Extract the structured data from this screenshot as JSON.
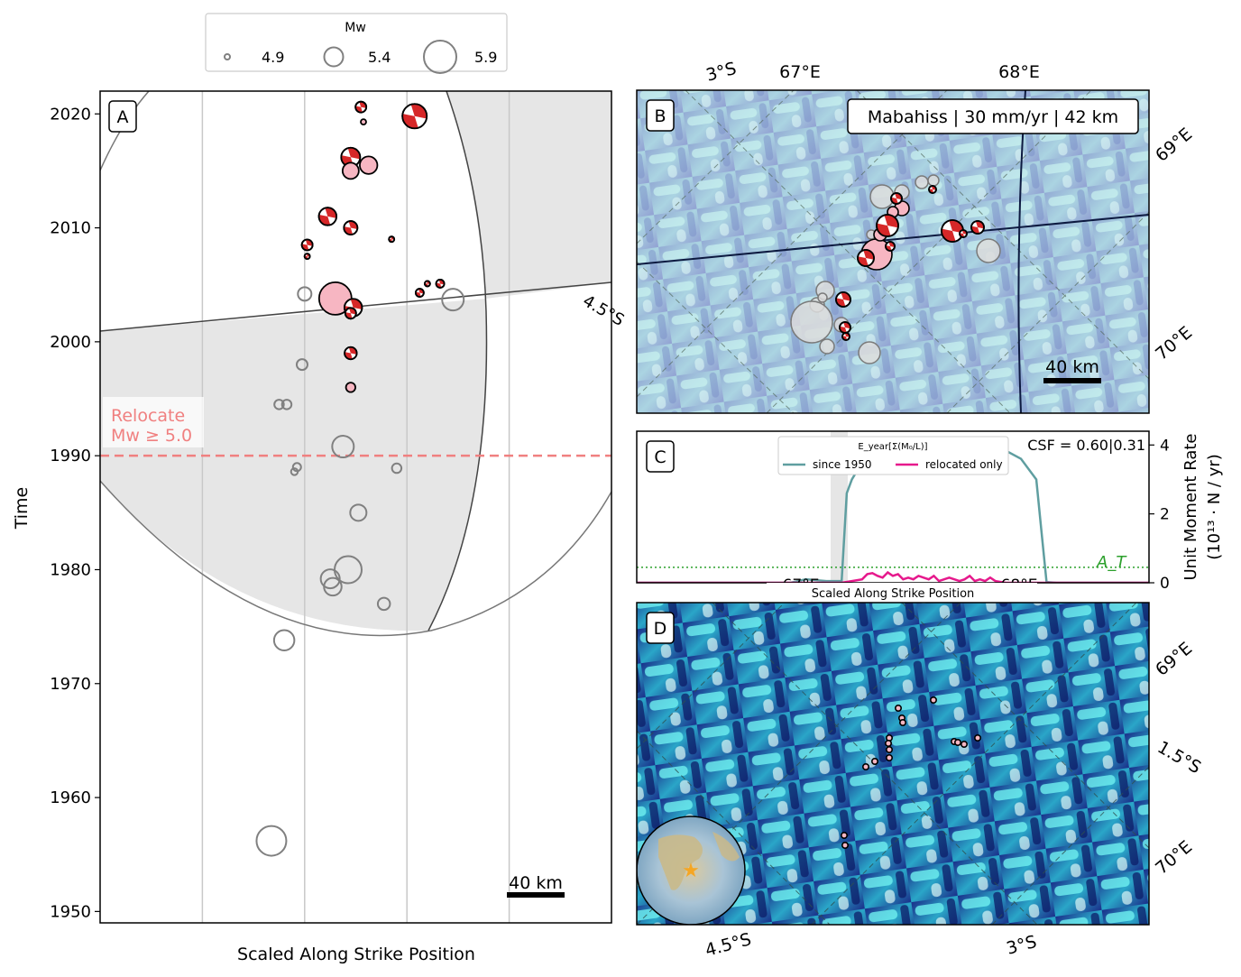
{
  "legend_top": {
    "title": "Mw",
    "items": [
      {
        "label": "4.9",
        "mw": 4.9
      },
      {
        "label": "5.4",
        "mw": 5.4
      },
      {
        "label": "5.9",
        "mw": 5.9
      }
    ]
  },
  "panel_a": {
    "letter": "A",
    "ylabel": "Time",
    "xlabel": "Scaled Along Strike Position",
    "yticks": [
      "1950",
      "1960",
      "1970",
      "1980",
      "1990",
      "2000",
      "2010",
      "2020"
    ],
    "lat_label": "4.5°S",
    "relocate_label_1": "Relocate",
    "relocate_label_2": "Mw ≥ 5.0",
    "relocate_year": 1990,
    "scalebar": "40 km"
  },
  "panel_b": {
    "letter": "B",
    "title_box": "Mabahiss | 30 mm/yr | 42 km",
    "top_labels": [
      "3°S",
      "67°E",
      "68°E"
    ],
    "right_labels": [
      "69°E",
      "70°E"
    ],
    "scalebar": "40 km"
  },
  "panel_c": {
    "letter": "C",
    "csf": "CSF = 0.60|0.31",
    "legend_title": "E_year[Σ(M₀/L)]",
    "series_names": [
      "since 1950",
      "relocated only"
    ],
    "ylabel_1": "Unit Moment Rate",
    "ylabel_2": "(10¹³ · N / yr)",
    "yticks": [
      "0",
      "2",
      "4"
    ],
    "threshold_label": "A_T",
    "xlabel": "Scaled Along Strike Position",
    "partial_ticks": [
      "67°E",
      "68°E"
    ]
  },
  "panel_d": {
    "letter": "D",
    "right_labels": [
      "69°E",
      "1.5°S",
      "70°E"
    ],
    "bottom_labels": [
      "4.5°S",
      "3°S"
    ]
  },
  "colors": {
    "relocated_fill": "#f7b6c2",
    "unrelocated_edge": "#808080",
    "focal_red": "#d62728",
    "relocate_line": "#f08080",
    "since1950": "#5f9ea0",
    "relocated_only": "#e6198c",
    "threshold": "#2ca02c",
    "shade": "#e6e6e6"
  },
  "chart_data": [
    {
      "type": "scatter",
      "panel": "A",
      "xlabel": "Scaled Along Strike Position",
      "ylabel": "Time",
      "ylim": [
        1949,
        2022
      ],
      "xlim": [
        0,
        100
      ],
      "grid": "vertical lines",
      "legend": "top-center (Mw sizes 4.9, 5.4, 5.9)",
      "relocated_events": [
        {
          "x": 51,
          "y": 2020.6,
          "mw": 5.1,
          "mech": true
        },
        {
          "x": 51.5,
          "y": 2019.3,
          "mw": 4.9,
          "mech": false
        },
        {
          "x": 61.5,
          "y": 2019.8,
          "mw": 5.6,
          "mech": true
        },
        {
          "x": 49,
          "y": 2016.2,
          "mw": 5.4,
          "mech": true
        },
        {
          "x": 52.5,
          "y": 2015.5,
          "mw": 5.35,
          "mech": false
        },
        {
          "x": 49,
          "y": 2015.0,
          "mw": 5.3,
          "mech": false
        },
        {
          "x": 44.5,
          "y": 2011.0,
          "mw": 5.35,
          "mech": true
        },
        {
          "x": 49,
          "y": 2010.0,
          "mw": 5.2,
          "mech": true
        },
        {
          "x": 57,
          "y": 2009.0,
          "mw": 4.85,
          "mech": true
        },
        {
          "x": 40.5,
          "y": 2008.5,
          "mw": 5.1,
          "mech": true
        },
        {
          "x": 40.5,
          "y": 2007.5,
          "mw": 4.9,
          "mech": true
        },
        {
          "x": 46,
          "y": 2003.8,
          "mw": 5.9,
          "mech": false
        },
        {
          "x": 49.5,
          "y": 2003.0,
          "mw": 5.35,
          "mech": true
        },
        {
          "x": 49,
          "y": 2002.5,
          "mw": 5.1,
          "mech": true
        },
        {
          "x": 62.5,
          "y": 2004.3,
          "mw": 5.0,
          "mech": true
        },
        {
          "x": 64,
          "y": 2005.1,
          "mw": 4.8,
          "mech": true
        },
        {
          "x": 66.5,
          "y": 2005.1,
          "mw": 5.0,
          "mech": true
        },
        {
          "x": 49,
          "y": 1999.0,
          "mw": 5.15,
          "mech": true
        },
        {
          "x": 49,
          "y": 1996.0,
          "mw": 5.05,
          "mech": false
        }
      ],
      "unrelocated_events": [
        {
          "x": 40,
          "y": 2004.2,
          "mw": 5.2
        },
        {
          "x": 69,
          "y": 2003.7,
          "mw": 5.5
        },
        {
          "x": 39.5,
          "y": 1998.0,
          "mw": 5.1
        },
        {
          "x": 35,
          "y": 1994.5,
          "mw": 5.05
        },
        {
          "x": 36.5,
          "y": 1994.5,
          "mw": 5.05
        },
        {
          "x": 47.5,
          "y": 1990.8,
          "mw": 5.5
        },
        {
          "x": 38.5,
          "y": 1989.0,
          "mw": 5.0
        },
        {
          "x": 38,
          "y": 1988.6,
          "mw": 4.95
        },
        {
          "x": 58,
          "y": 1988.9,
          "mw": 5.05
        },
        {
          "x": 50.5,
          "y": 1985.0,
          "mw": 5.3
        },
        {
          "x": 48.5,
          "y": 1980.0,
          "mw": 5.7
        },
        {
          "x": 45,
          "y": 1979.2,
          "mw": 5.4
        },
        {
          "x": 45.5,
          "y": 1978.5,
          "mw": 5.35
        },
        {
          "x": 55.5,
          "y": 1977.0,
          "mw": 5.15
        },
        {
          "x": 36,
          "y": 1973.8,
          "mw": 5.45
        },
        {
          "x": 33.5,
          "y": 1956.2,
          "mw": 5.8
        }
      ]
    },
    {
      "type": "line",
      "panel": "C",
      "title": "CSF = 0.60|0.31",
      "xlabel": "Scaled Along Strike Position",
      "ylabel": "Unit Moment Rate (10¹³ · N / yr)",
      "ylim": [
        0,
        4.4
      ],
      "xlim": [
        0,
        100
      ],
      "threshold": 0.45,
      "legend": "top-center",
      "series": [
        {
          "name": "since 1950",
          "x": [
            0,
            30,
            33,
            37,
            40,
            41,
            42,
            44,
            46,
            50,
            55,
            60,
            65,
            70,
            75,
            78,
            79,
            80,
            82,
            100
          ],
          "values": [
            0,
            0,
            0.1,
            0.05,
            0.05,
            2.6,
            3.0,
            3.5,
            3.8,
            4.0,
            4.1,
            4.15,
            4.1,
            4.0,
            3.6,
            3.0,
            1.5,
            0.02,
            0,
            0
          ]
        },
        {
          "name": "relocated only",
          "x": [
            0,
            40,
            42,
            44,
            45,
            46,
            47,
            48,
            49,
            50,
            51,
            52,
            53,
            54,
            55,
            56,
            57,
            58,
            59,
            60,
            61,
            62,
            63,
            64,
            65,
            66,
            67,
            68,
            69,
            70,
            72,
            100
          ],
          "values": [
            0,
            0,
            0.05,
            0.1,
            0.25,
            0.28,
            0.2,
            0.15,
            0.3,
            0.2,
            0.25,
            0.1,
            0.15,
            0.1,
            0.2,
            0.15,
            0.1,
            0.2,
            0.05,
            0.1,
            0.15,
            0.1,
            0.05,
            0.1,
            0.2,
            0.05,
            0.1,
            0.05,
            0.15,
            0.05,
            0,
            0
          ]
        }
      ]
    }
  ]
}
